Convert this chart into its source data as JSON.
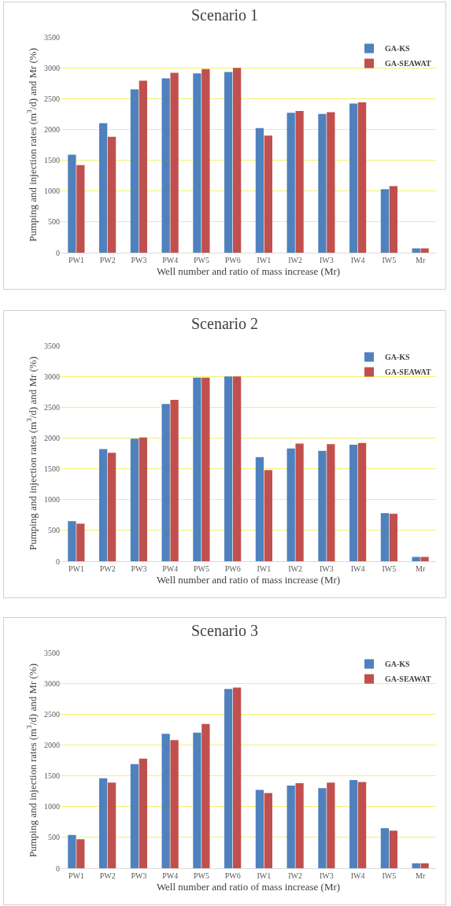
{
  "chart_data": [
    {
      "type": "bar",
      "title": "Scenario 1",
      "xlabel": "Well number and ratio of mass increase (Mr)",
      "ylabel": "Pumping and injection rates (m$^{3}$/d) and Mr (%)",
      "categories": [
        "PW1",
        "PW2",
        "PW3",
        "PW4",
        "PW5",
        "PW6",
        "IW1",
        "IW2",
        "IW3",
        "IW4",
        "IW5",
        "Mr"
      ],
      "series": [
        {
          "name": "GA-KS",
          "color": "#4f81bd",
          "values": [
            1590,
            2100,
            2650,
            2830,
            2910,
            2930,
            2020,
            2270,
            2250,
            2420,
            1030,
            70
          ]
        },
        {
          "name": "GA-SEAWAT",
          "color": "#c0504d",
          "values": [
            1420,
            1880,
            2790,
            2920,
            2980,
            3000,
            1900,
            2300,
            2280,
            2440,
            1080,
            70
          ]
        }
      ],
      "ylim": [
        0,
        3500
      ],
      "yticks": [
        0,
        500,
        1000,
        1500,
        2000,
        2500,
        3000,
        3500
      ],
      "grid": "y",
      "legend": "top right"
    },
    {
      "type": "bar",
      "title": "Scenario 2",
      "xlabel": "Well number and ratio of mass increase (Mr)",
      "ylabel": "Pumping and injection rates (m$^{3}$/d) and Mr (%)",
      "categories": [
        "PW1",
        "PW2",
        "PW3",
        "PW4",
        "PW5",
        "PW6",
        "IW1",
        "IW2",
        "IW3",
        "IW4",
        "IW5",
        "Mr"
      ],
      "series": [
        {
          "name": "GA-KS",
          "color": "#4f81bd",
          "values": [
            650,
            1820,
            1990,
            2550,
            2980,
            3000,
            1690,
            1830,
            1790,
            1890,
            780,
            70
          ]
        },
        {
          "name": "GA-SEAWAT",
          "color": "#c0504d",
          "values": [
            610,
            1760,
            2010,
            2620,
            2980,
            3000,
            1480,
            1910,
            1900,
            1920,
            770,
            70
          ]
        }
      ],
      "ylim": [
        0,
        3500
      ],
      "yticks": [
        0,
        500,
        1000,
        1500,
        2000,
        2500,
        3000,
        3500
      ],
      "grid": "y",
      "legend": "top right"
    },
    {
      "type": "bar",
      "title": "Scenario 3",
      "xlabel": "Well number and ratio of mass increase (Mr)",
      "ylabel": "Pumping and injection rates (m$^{3}$/d) and Mr (%)",
      "categories": [
        "PW1",
        "PW2",
        "PW3",
        "PW4",
        "PW5",
        "PW6",
        "IW1",
        "IW2",
        "IW3",
        "IW4",
        "IW5",
        "Mr"
      ],
      "series": [
        {
          "name": "GA-KS",
          "color": "#4f81bd",
          "values": [
            540,
            1460,
            1690,
            2180,
            2200,
            2910,
            1270,
            1340,
            1300,
            1430,
            650,
            80
          ]
        },
        {
          "name": "GA-SEAWAT",
          "color": "#c0504d",
          "values": [
            470,
            1390,
            1780,
            2080,
            2340,
            2930,
            1220,
            1380,
            1390,
            1400,
            610,
            80
          ]
        }
      ],
      "ylim": [
        0,
        3500
      ],
      "yticks": [
        0,
        500,
        1000,
        1500,
        2000,
        2500,
        3000,
        3500
      ],
      "grid": "y",
      "legend": "top right"
    }
  ]
}
